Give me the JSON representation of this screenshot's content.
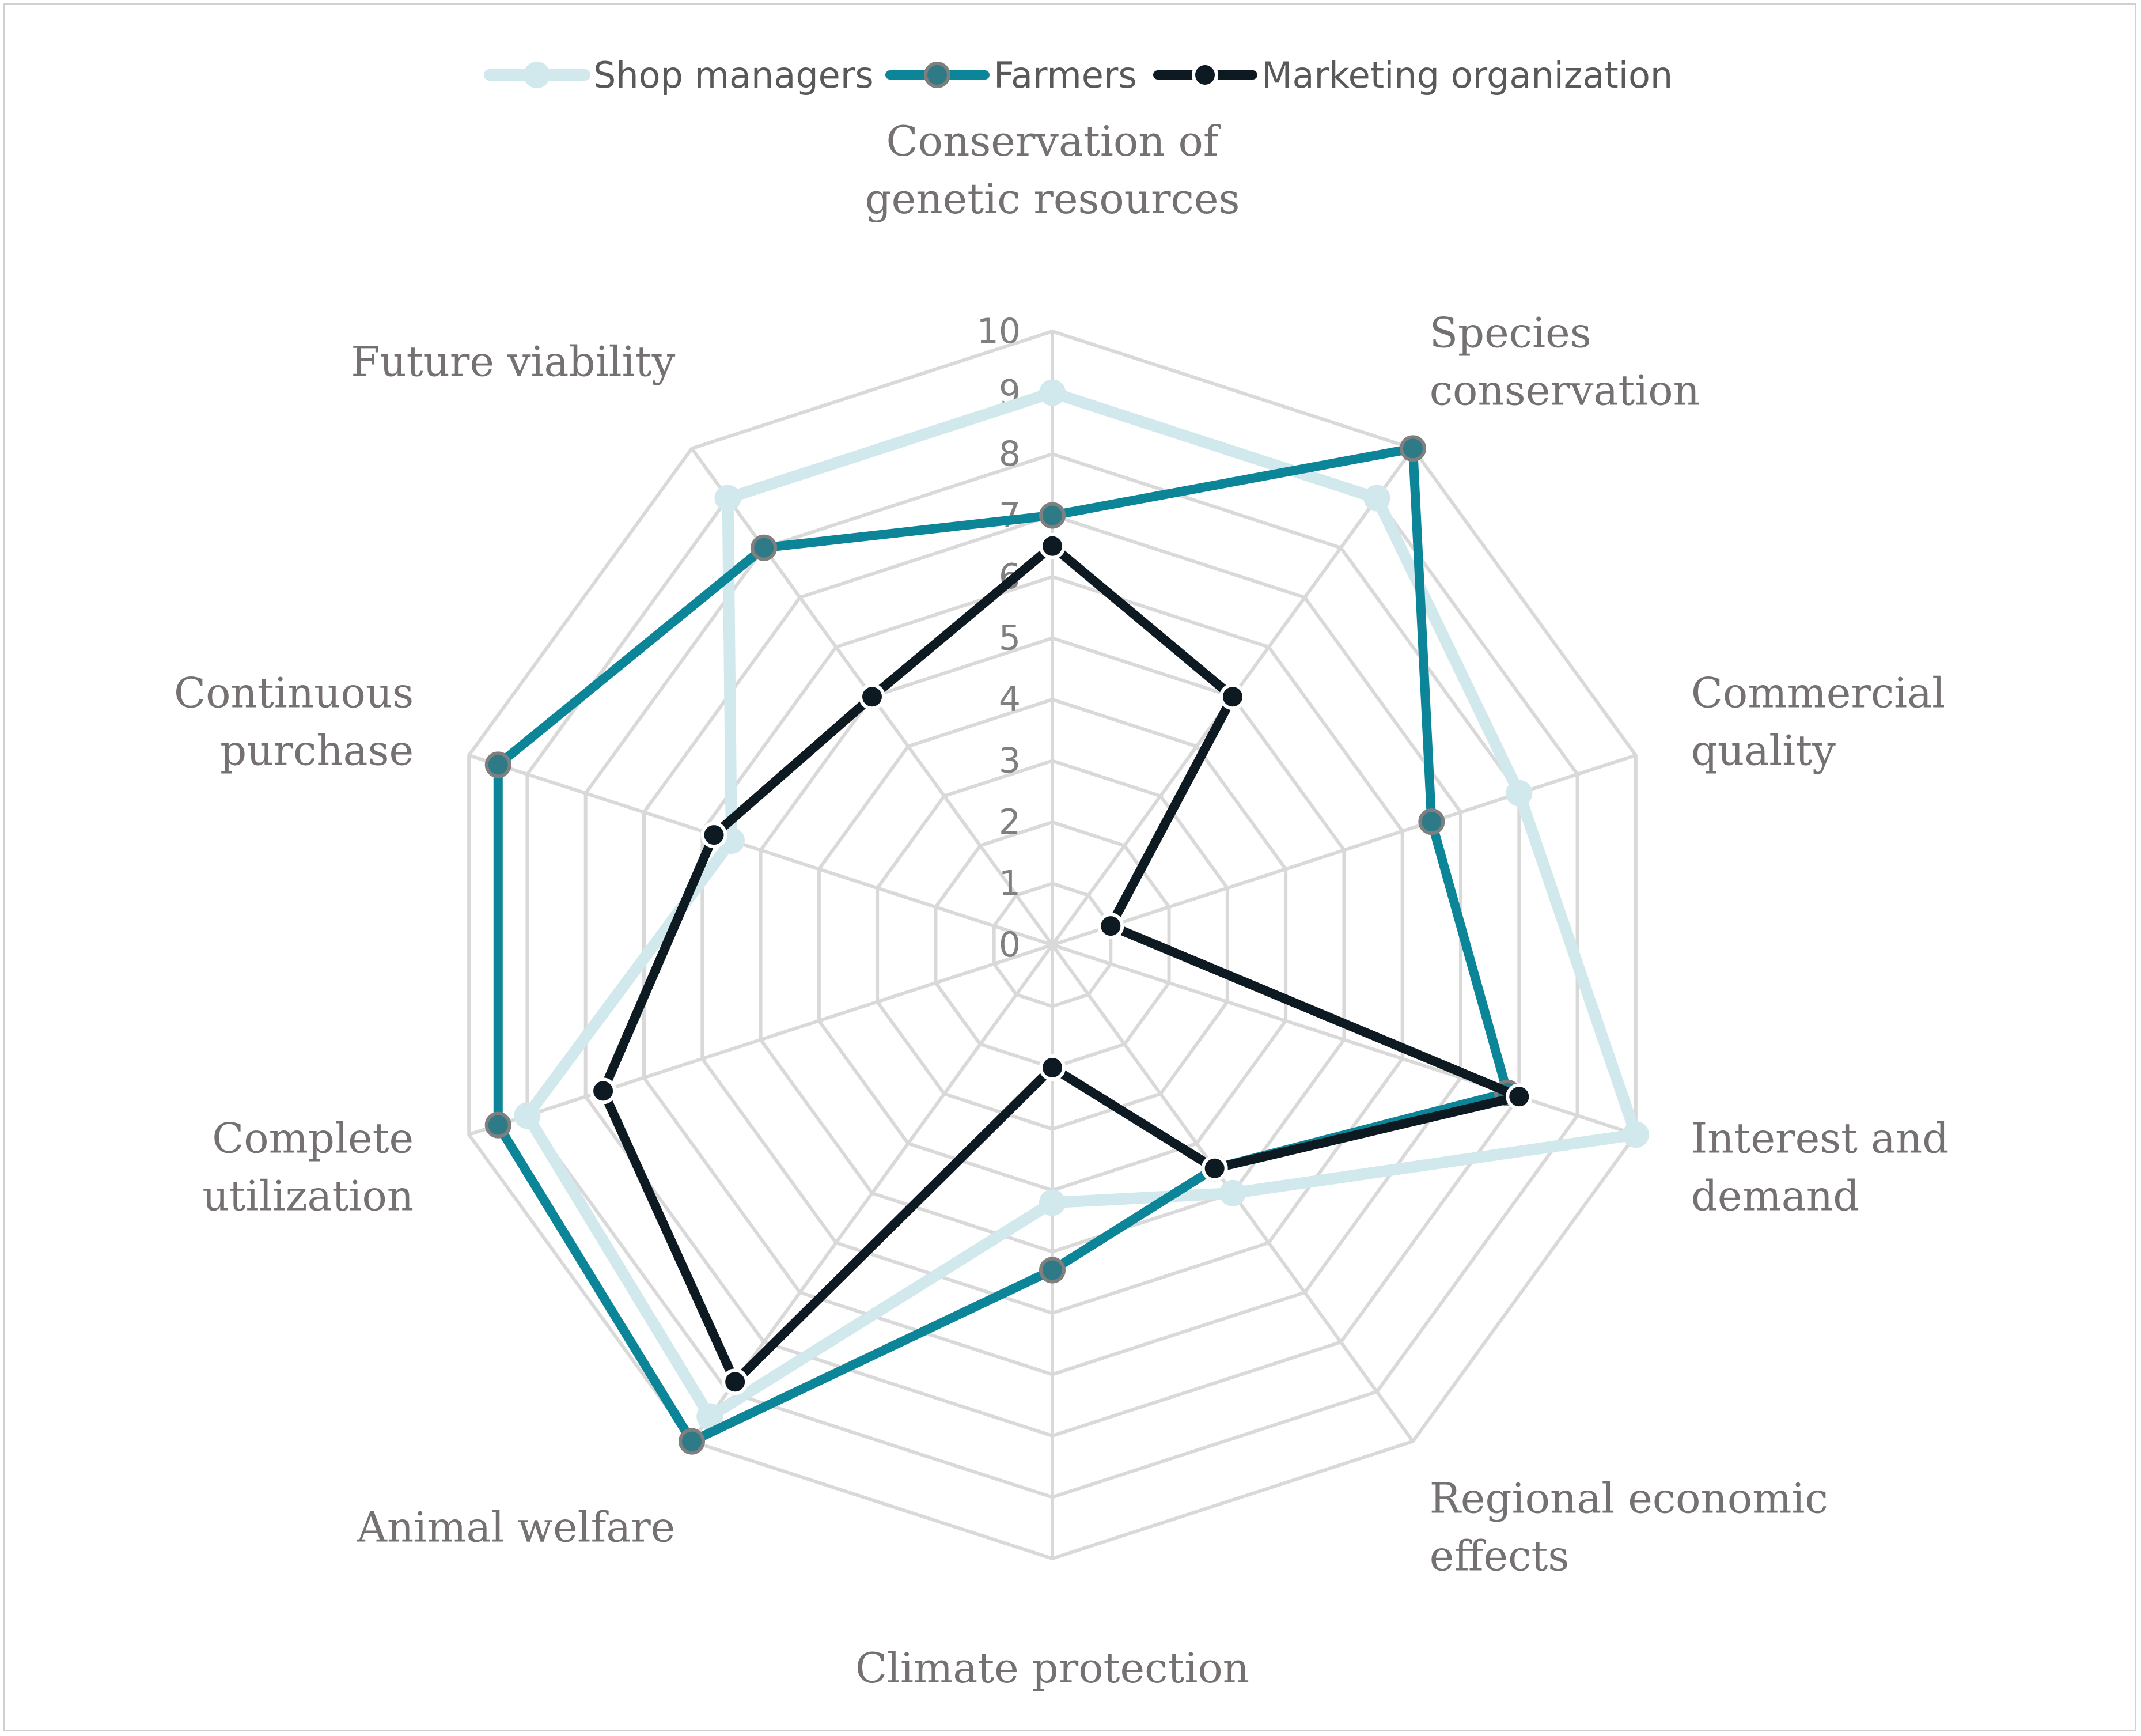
{
  "chart_data": {
    "type": "radar",
    "title": "",
    "axes": [
      [
        "Conservation of",
        "genetic resources"
      ],
      [
        "Species",
        "conservation"
      ],
      [
        "Commercial",
        "quality"
      ],
      [
        "Interest and",
        "demand"
      ],
      [
        "Regional economic",
        "effects"
      ],
      [
        "Climate protection"
      ],
      [
        "Animal welfare"
      ],
      [
        "Complete",
        "utilization"
      ],
      [
        "Continuous",
        "purchase"
      ],
      [
        "Future viability"
      ]
    ],
    "rlim": [
      0,
      10
    ],
    "ticks": [
      "0",
      "1",
      "2",
      "3",
      "4",
      "5",
      "6",
      "7",
      "8",
      "9",
      "10"
    ],
    "grid": true,
    "legend_position": "top",
    "series": [
      {
        "name": "Shop managers",
        "values": [
          9.0,
          9.0,
          8.0,
          10.0,
          5.0,
          4.2,
          9.5,
          9.0,
          5.5,
          9.0
        ],
        "color": "#d1e8ec",
        "marker_fill": "#d1e8ec",
        "marker_edge": "#d1e8ec"
      },
      {
        "name": "Farmers",
        "values": [
          7.0,
          10.0,
          6.5,
          7.8,
          4.5,
          5.3,
          10.0,
          9.5,
          9.5,
          8.0
        ],
        "color": "#0b8597",
        "marker_fill": "#2e7a86",
        "marker_edge": "#7f7f7f"
      },
      {
        "name": "Marketing organization",
        "values": [
          6.5,
          5.0,
          1.0,
          8.0,
          4.5,
          2.0,
          8.8,
          7.7,
          5.8,
          5.0
        ],
        "color": "#0d1a22",
        "marker_fill": "#0d1a22",
        "marker_edge": "#ffffff"
      }
    ]
  }
}
